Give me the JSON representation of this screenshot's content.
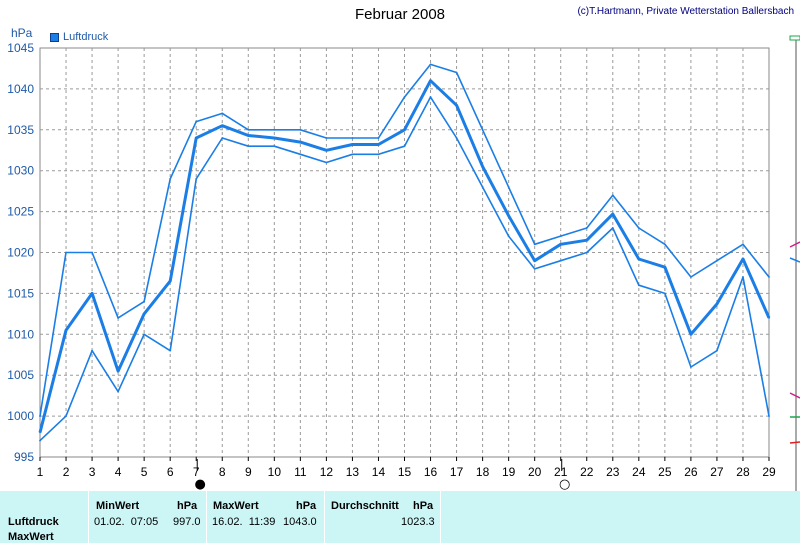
{
  "header": {
    "title": "Februar 2008",
    "credit": "(c)T.Hartmann, Private Wetterstation Ballersbach",
    "unit": "hPa"
  },
  "legend": {
    "label": "Luftdruck",
    "color": "#1a7ee6"
  },
  "chart_data": {
    "type": "line",
    "title": "Februar 2008",
    "ylabel": "hPa",
    "xlabel": "",
    "ylim": [
      995,
      1045
    ],
    "yticks": [
      995,
      1000,
      1005,
      1010,
      1015,
      1020,
      1025,
      1030,
      1035,
      1040,
      1045
    ],
    "x": [
      1,
      2,
      3,
      4,
      5,
      6,
      7,
      8,
      9,
      10,
      11,
      12,
      13,
      14,
      15,
      16,
      17,
      18,
      19,
      20,
      21,
      22,
      23,
      24,
      25,
      26,
      27,
      28,
      29
    ],
    "grid": true,
    "series": [
      {
        "name": "Luftdruck",
        "role": "max",
        "values": [
          1000,
          1020,
          1020,
          1012,
          1014,
          1029,
          1036,
          1037,
          1035,
          1035,
          1035,
          1034,
          1034,
          1034,
          1039,
          1043,
          1042,
          1035,
          1028,
          1021,
          1022,
          1023,
          1027,
          1023,
          1021,
          1017,
          1019,
          1021,
          1017
        ]
      },
      {
        "name": "Luftdruck",
        "role": "mean",
        "values": [
          998,
          1010.5,
          1015,
          1005.5,
          1012.5,
          1016.5,
          1034,
          1035.5,
          1034.3,
          1034,
          1033.5,
          1032.5,
          1033.2,
          1033.2,
          1035,
          1041,
          1038,
          1030.5,
          1024.5,
          1019,
          1021,
          1021.5,
          1024.7,
          1019.2,
          1018.2,
          1010,
          1013.7,
          1019.2,
          1012
        ]
      },
      {
        "name": "Luftdruck",
        "role": "min",
        "values": [
          997,
          1000,
          1008,
          1003,
          1010,
          1008,
          1029,
          1034,
          1033,
          1033,
          1032,
          1031,
          1032,
          1032,
          1033,
          1039,
          1034,
          1028,
          1022,
          1018,
          1019,
          1020,
          1023,
          1016,
          1015,
          1006,
          1008,
          1017,
          1000
        ]
      }
    ],
    "moon_markers": [
      {
        "day": 7,
        "symbol": "●"
      },
      {
        "day": 21,
        "symbol": "○"
      }
    ]
  },
  "stats": {
    "col_min_header": "MinWert",
    "col_max_header": "MaxWert",
    "col_avg_header": "Durchschnitt",
    "unit": "hPa",
    "rows": [
      {
        "label": "Luftdruck",
        "min_date": "01.02.  07:05",
        "min_val": "997.0",
        "max_date": "16.02.  11:39",
        "max_val": "1043.0",
        "avg": "1023.3"
      },
      {
        "label": "MaxWert"
      }
    ]
  }
}
